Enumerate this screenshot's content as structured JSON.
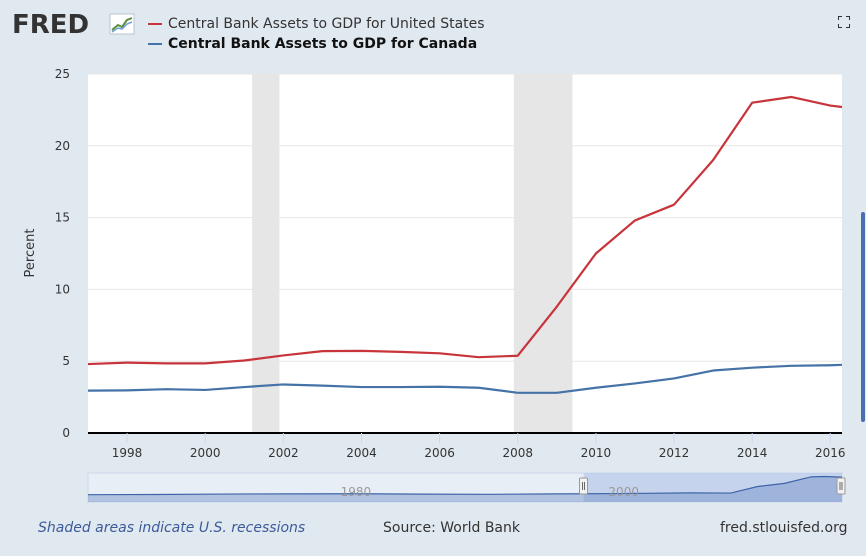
{
  "header": {
    "logo_text": "FRED"
  },
  "legend": {
    "series_us": "Central Bank Assets to GDP for United States",
    "series_ca": "Central Bank Assets to GDP for Canada"
  },
  "colors": {
    "us": "#c7343a",
    "ca": "#4572a7",
    "recession": "#e6e6e6",
    "plot_bg": "#ffffff",
    "navigator_bg": "#e8eef5",
    "navigator_window": "#b6c9e8"
  },
  "footer": {
    "recession_note": "Shaded areas indicate U.S. recessions",
    "source": "Source: World Bank",
    "site": "fred.stlouisfed.org"
  },
  "chart_data": {
    "type": "line",
    "ylabel": "Percent",
    "xlabel": "",
    "ylim": [
      0,
      25
    ],
    "yticks": [
      0,
      5,
      10,
      15,
      20,
      25
    ],
    "xlim": [
      1997,
      2016.3
    ],
    "xticks": [
      1998,
      2000,
      2002,
      2004,
      2006,
      2008,
      2010,
      2012,
      2014,
      2016
    ],
    "grid": true,
    "recessions": [
      [
        2001.2,
        2001.9
      ],
      [
        2007.9,
        2009.4
      ]
    ],
    "x": [
      1997,
      1998,
      1999,
      2000,
      2001,
      2002,
      2003,
      2004,
      2005,
      2006,
      2007,
      2008,
      2009,
      2010,
      2011,
      2012,
      2013,
      2014,
      2015,
      2016,
      2016.3
    ],
    "series": [
      {
        "name": "Central Bank Assets to GDP for United States",
        "values": [
          4.8,
          4.9,
          4.85,
          4.85,
          5.05,
          5.4,
          5.7,
          5.72,
          5.65,
          5.55,
          5.28,
          5.38,
          8.8,
          12.5,
          14.8,
          15.9,
          19.0,
          23.0,
          23.4,
          22.8,
          22.7
        ]
      },
      {
        "name": "Central Bank Assets to GDP for Canada",
        "values": [
          2.95,
          2.97,
          3.05,
          3.0,
          3.2,
          3.38,
          3.3,
          3.2,
          3.2,
          3.22,
          3.15,
          2.8,
          2.8,
          3.15,
          3.45,
          3.8,
          4.35,
          4.55,
          4.68,
          4.72,
          4.75
        ]
      }
    ],
    "navigator": {
      "labels": [
        "1980",
        "2000"
      ],
      "label_years": [
        1980,
        2000
      ],
      "xlim": [
        1960,
        2016.3
      ],
      "window": [
        1997,
        2016.3
      ],
      "x": [
        1960,
        1965,
        1970,
        1975,
        1980,
        1985,
        1990,
        1995,
        2000,
        2005,
        2008,
        2010,
        2012,
        2014,
        2015,
        2016.3
      ],
      "values": [
        3.6,
        3.8,
        4.3,
        4.5,
        4.6,
        4.2,
        4.0,
        4.5,
        4.85,
        5.6,
        5.38,
        12.5,
        15.9,
        23.0,
        23.4,
        22.7
      ]
    }
  }
}
